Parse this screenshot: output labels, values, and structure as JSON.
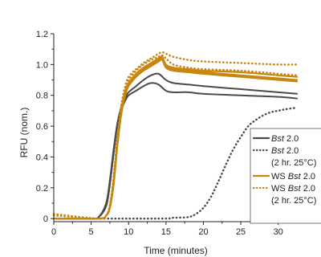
{
  "chart_data": {
    "type": "line",
    "xlabel": "Time (minutes)",
    "ylabel": "RFU (nom.)",
    "xlim": [
      0,
      32.5
    ],
    "ylim": [
      -0.02,
      1.2
    ],
    "x_ticks": [
      0,
      5,
      10,
      15,
      20,
      25,
      30
    ],
    "y_ticks": [
      0,
      0.2,
      0.4,
      0.6,
      0.8,
      1.0,
      1.2
    ],
    "x_tick_labels": [
      "0",
      "5",
      "10",
      "15",
      "20",
      "25",
      "30"
    ],
    "y_tick_labels": [
      "0",
      "0.2",
      "0.4",
      "0.6",
      "0.8",
      "1.0",
      "1.2"
    ],
    "grid": false,
    "legend_position": "right",
    "colors": {
      "dark": "#4a4a4a",
      "orange": "#c8860f"
    },
    "legend": [
      {
        "text_plain": "",
        "text_italic": "Bst",
        "text_rest": " 2.0",
        "color": "#4a4a4a",
        "style": "solid"
      },
      {
        "text_plain": "",
        "text_italic": "Bst",
        "text_rest": " 2.0",
        "color": "#4a4a4a",
        "style": "dotted"
      },
      {
        "text_plain": "(2 hr. 25°C)",
        "text_italic": "",
        "text_rest": "",
        "color": "",
        "style": "none"
      },
      {
        "text_plain": "WS ",
        "text_italic": "Bst",
        "text_rest": " 2.0",
        "color": "#c8860f",
        "style": "solid"
      },
      {
        "text_plain": "WS ",
        "text_italic": "Bst",
        "text_rest": " 2.0",
        "color": "#c8860f",
        "style": "dotted"
      },
      {
        "text_plain": "(2 hr. 25°C)",
        "text_italic": "",
        "text_rest": "",
        "color": "",
        "style": "none"
      }
    ],
    "series": [
      {
        "group": "Bst 2.0",
        "color": "#4a4a4a",
        "style": "solid",
        "x": [
          0,
          5,
          6,
          7,
          7.5,
          8,
          8.5,
          9,
          9.5,
          10,
          11,
          12,
          13,
          14,
          15,
          16,
          18,
          20,
          25,
          30,
          32.5
        ],
        "y": [
          0,
          0,
          0.01,
          0.1,
          0.25,
          0.45,
          0.62,
          0.72,
          0.78,
          0.82,
          0.86,
          0.9,
          0.93,
          0.94,
          0.9,
          0.88,
          0.87,
          0.86,
          0.84,
          0.82,
          0.81
        ]
      },
      {
        "group": "Bst 2.0",
        "color": "#4a4a4a",
        "style": "solid",
        "x": [
          0,
          5,
          6,
          7,
          7.5,
          8,
          8.5,
          9,
          9.5,
          10,
          11,
          12,
          13,
          14,
          15,
          16,
          18,
          20,
          25,
          30,
          32.5
        ],
        "y": [
          0,
          0,
          0.01,
          0.08,
          0.22,
          0.42,
          0.6,
          0.7,
          0.76,
          0.8,
          0.83,
          0.86,
          0.88,
          0.87,
          0.83,
          0.82,
          0.82,
          0.81,
          0.8,
          0.79,
          0.78
        ]
      },
      {
        "group": "Bst 2.0 (2 hr. 25°C)",
        "color": "#4a4a4a",
        "style": "dotted",
        "x": [
          0,
          14,
          16,
          18,
          19,
          20,
          21,
          22,
          23,
          24,
          25,
          26,
          27,
          28,
          29,
          30,
          31,
          32.5
        ],
        "y": [
          0,
          0,
          0.005,
          0.01,
          0.03,
          0.07,
          0.14,
          0.24,
          0.35,
          0.45,
          0.53,
          0.6,
          0.64,
          0.67,
          0.69,
          0.7,
          0.71,
          0.72
        ]
      },
      {
        "group": "WS Bst 2.0",
        "color": "#c8860f",
        "style": "solid",
        "x": [
          0,
          6,
          7,
          7.5,
          8,
          8.5,
          9,
          9.5,
          10,
          11,
          12,
          13,
          14,
          14.5,
          15,
          16,
          18,
          20,
          25,
          30,
          32.5
        ],
        "y": [
          0,
          0,
          0.02,
          0.08,
          0.25,
          0.5,
          0.7,
          0.82,
          0.88,
          0.94,
          0.98,
          1.01,
          1.04,
          1.05,
          1.0,
          0.98,
          0.97,
          0.96,
          0.95,
          0.93,
          0.92
        ]
      },
      {
        "group": "WS Bst 2.0",
        "color": "#c8860f",
        "style": "solid",
        "x": [
          0,
          6,
          7,
          7.5,
          8,
          8.5,
          9,
          9.5,
          10,
          11,
          12,
          13,
          14,
          14.5,
          15,
          16,
          18,
          20,
          25,
          30,
          32.5
        ],
        "y": [
          0,
          0,
          0.02,
          0.07,
          0.23,
          0.48,
          0.68,
          0.8,
          0.87,
          0.93,
          0.97,
          1.0,
          1.03,
          1.04,
          0.99,
          0.97,
          0.96,
          0.95,
          0.93,
          0.91,
          0.9
        ]
      },
      {
        "group": "WS Bst 2.0",
        "color": "#c8860f",
        "style": "solid",
        "x": [
          0,
          6,
          7,
          7.5,
          8,
          8.5,
          9,
          9.5,
          10,
          11,
          12,
          13,
          14,
          14.5,
          15,
          16,
          18,
          20,
          25,
          30,
          32.5
        ],
        "y": [
          0,
          0,
          0.02,
          0.07,
          0.22,
          0.47,
          0.67,
          0.79,
          0.86,
          0.92,
          0.96,
          0.99,
          1.02,
          1.03,
          0.98,
          0.96,
          0.95,
          0.94,
          0.92,
          0.9,
          0.89
        ]
      },
      {
        "group": "WS Bst 2.0 (2 hr. 25°C)",
        "color": "#c8860f",
        "style": "dotted",
        "x": [
          0,
          6,
          7,
          7.5,
          8,
          8.5,
          9,
          9.5,
          10,
          11,
          12,
          13,
          14,
          14.5,
          15,
          16,
          18,
          20,
          25,
          30,
          32.5
        ],
        "y": [
          0.03,
          0,
          0.02,
          0.09,
          0.27,
          0.53,
          0.73,
          0.85,
          0.92,
          0.97,
          1.01,
          1.04,
          1.07,
          1.08,
          1.07,
          1.05,
          1.03,
          1.02,
          1.01,
          1.0,
          1.0
        ]
      },
      {
        "group": "WS Bst 2.0 (2 hr. 25°C)",
        "color": "#c8860f",
        "style": "dotted",
        "x": [
          0,
          6,
          7,
          7.5,
          8,
          8.5,
          9,
          9.5,
          10,
          11,
          12,
          13,
          14,
          14.5,
          15,
          16,
          18,
          20,
          25,
          30,
          32.5
        ],
        "y": [
          0.02,
          0,
          0.02,
          0.08,
          0.26,
          0.52,
          0.72,
          0.84,
          0.9,
          0.96,
          1.0,
          1.03,
          1.05,
          1.06,
          1.04,
          1.0,
          0.98,
          0.97,
          0.96,
          0.94,
          0.93
        ]
      }
    ]
  }
}
